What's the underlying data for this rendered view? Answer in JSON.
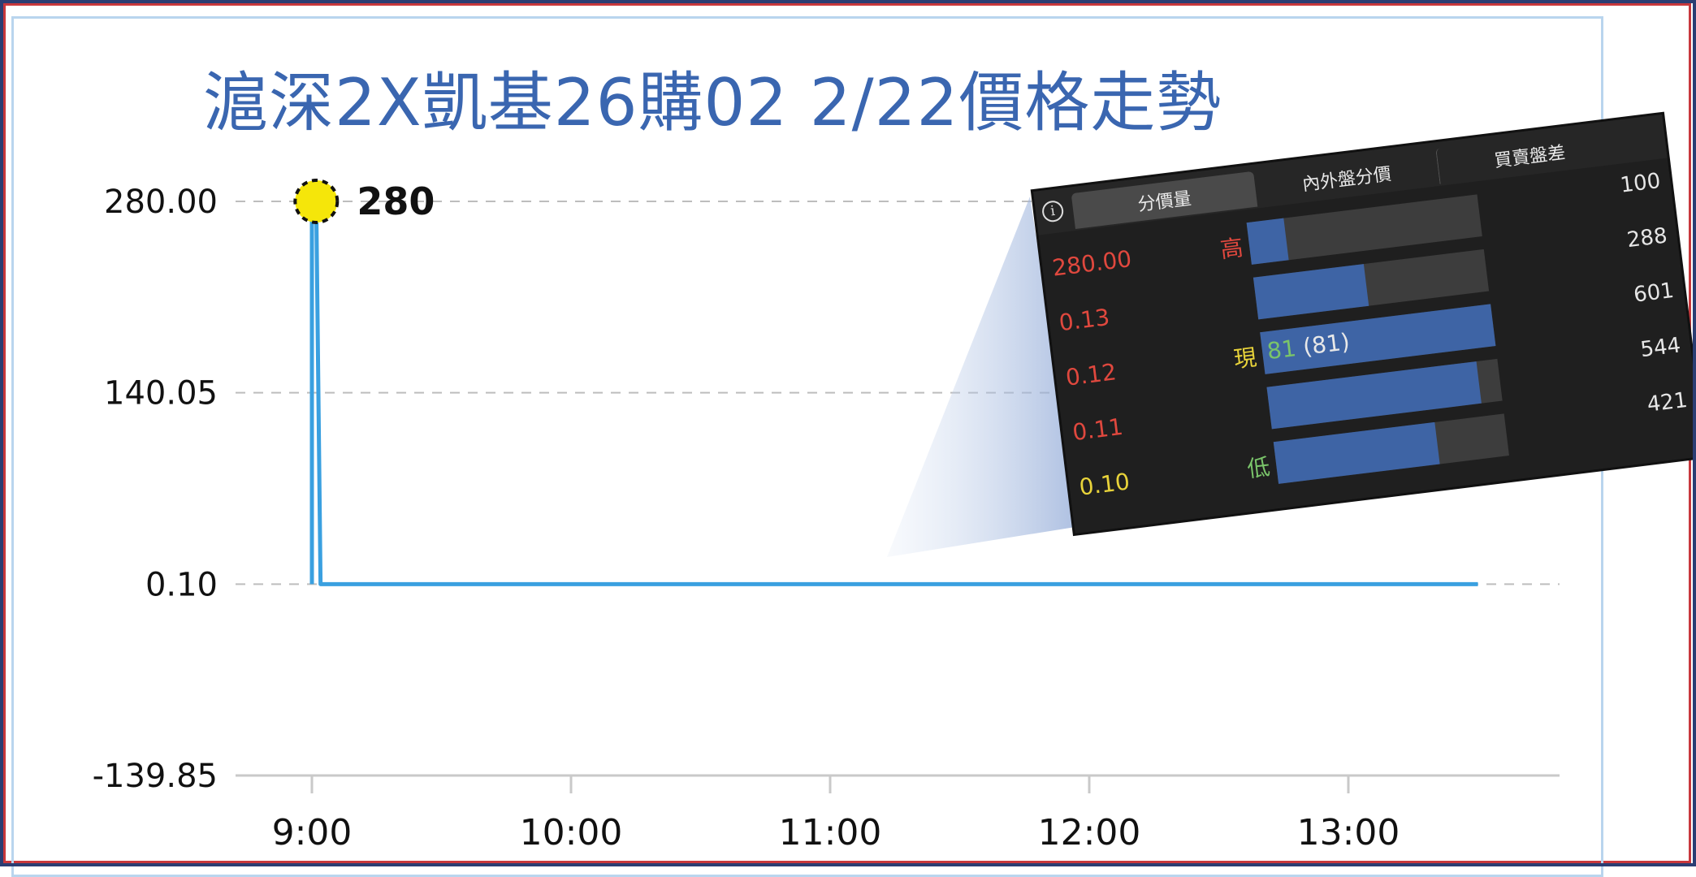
{
  "chart_data": {
    "type": "line",
    "title": "滬深2X凱基26購02 2/22價格走勢",
    "y_ticks": [
      "280.00",
      "140.05",
      "0.10",
      "-139.85"
    ],
    "x_ticks": [
      "9:00",
      "10:00",
      "11:00",
      "12:00",
      "13:00"
    ],
    "ylim": [
      -139.85,
      280.0
    ],
    "grid": "horizontal dashed",
    "series": [
      {
        "x": [
          "9:00",
          "9:00",
          "9:01",
          "9:02",
          "13:30"
        ],
        "y": [
          0.1,
          280,
          280,
          0.1,
          0.1
        ]
      }
    ],
    "annotation": {
      "label": "280",
      "x": "9:01",
      "y": 280,
      "marker_color": "#f5e60a"
    },
    "line_color": "#3aa0e0"
  },
  "inset": {
    "tabs": [
      "分價量",
      "內外盤分價",
      "買賣盤差"
    ],
    "info_symbol": "i",
    "rows": [
      {
        "price": "280.00",
        "price_color": "#e0483e",
        "marker": "高",
        "marker_color": "#e0483e",
        "fill": 0.16
      },
      {
        "price": "0.13",
        "price_color": "#e0483e",
        "marker": "",
        "marker_color": "",
        "fill": 0.48
      },
      {
        "price": "0.12",
        "price_color": "#e0483e",
        "marker": "現",
        "marker_color": "#e8d33a",
        "fill": 1.0
      },
      {
        "price": "0.11",
        "price_color": "#e0483e",
        "marker": "",
        "marker_color": "",
        "fill": 0.91
      },
      {
        "price": "0.10",
        "price_color": "#e8d33a",
        "marker": "低",
        "marker_color": "#7ac46a",
        "fill": 0.7
      }
    ],
    "current_value": "81",
    "current_paren": "(81)",
    "volumes": [
      "100",
      "288",
      "601",
      "544",
      "421"
    ]
  }
}
